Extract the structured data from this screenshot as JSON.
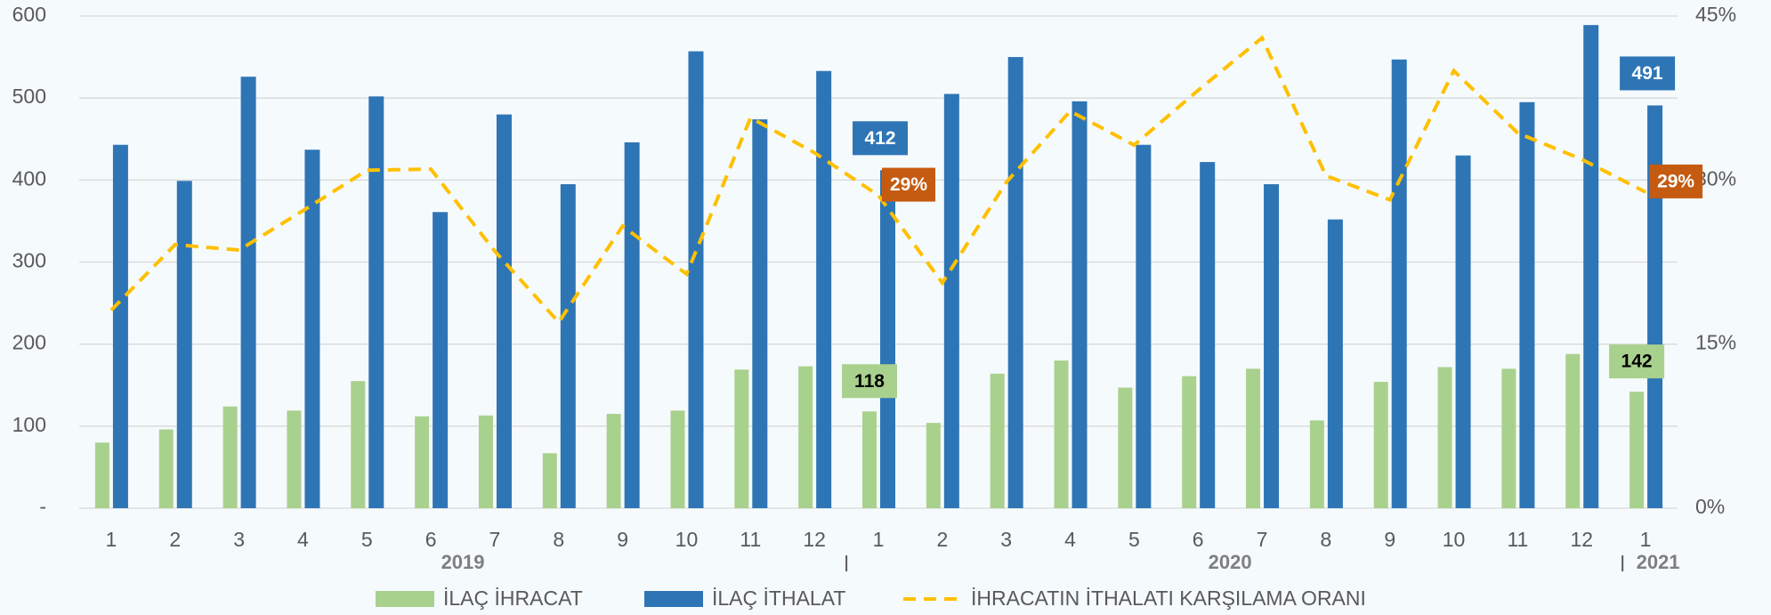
{
  "chart_data": {
    "type": "bar_line",
    "categories": [
      "1",
      "2",
      "3",
      "4",
      "5",
      "6",
      "7",
      "8",
      "9",
      "10",
      "11",
      "12",
      "1",
      "2",
      "3",
      "4",
      "5",
      "6",
      "7",
      "8",
      "9",
      "10",
      "11",
      "12",
      "1"
    ],
    "groups": [
      "2019",
      "2020",
      "2021"
    ],
    "group_sizes": [
      12,
      12,
      1
    ],
    "series": [
      {
        "name": "İLAÇ İHRACAT",
        "type": "bar",
        "color": "#a9d18e",
        "values": [
          80,
          96,
          124,
          119,
          155,
          112,
          113,
          67,
          115,
          119,
          169,
          173,
          118,
          104,
          164,
          180,
          147,
          161,
          170,
          107,
          154,
          172,
          170,
          188,
          142
        ],
        "labeled": [
          12,
          24
        ]
      },
      {
        "name": "İLAÇ İTHALAT",
        "type": "bar",
        "color": "#2e75b6",
        "values": [
          443,
          399,
          526,
          437,
          502,
          361,
          480,
          395,
          446,
          557,
          474,
          533,
          412,
          505,
          550,
          496,
          443,
          422,
          395,
          352,
          547,
          430,
          495,
          589,
          491
        ],
        "labeled": [
          12,
          24
        ]
      },
      {
        "name": "İHRACATIN İTHALATI KARŞILAMA ORANI",
        "type": "line",
        "axis": "y2",
        "color": "#ffc000",
        "dashed": true,
        "values": [
          18.1,
          24.1,
          23.6,
          27.2,
          30.9,
          31.0,
          23.5,
          17.0,
          25.8,
          21.4,
          35.7,
          32.5,
          28.6,
          20.6,
          29.8,
          36.3,
          33.2,
          38.2,
          43.0,
          30.4,
          28.2,
          40.0,
          34.3,
          31.9,
          28.9
        ],
        "value_labels": [
          null,
          null,
          null,
          null,
          null,
          null,
          null,
          null,
          null,
          null,
          null,
          null,
          "29%",
          null,
          null,
          null,
          null,
          null,
          null,
          null,
          null,
          null,
          null,
          null,
          "29%"
        ]
      }
    ],
    "ylim": [
      0,
      600
    ],
    "yticks": [
      {
        "value": 0,
        "label": "-"
      },
      100,
      200,
      300,
      400,
      500,
      600
    ],
    "y2lim": [
      0,
      45
    ],
    "y2ticks": [
      {
        "value": 0,
        "label": "0%"
      },
      {
        "value": 15,
        "label": "15%"
      },
      {
        "value": 30,
        "label": "30%"
      },
      {
        "value": 45,
        "label": "45%"
      }
    ],
    "grid": true,
    "legend": "bottom"
  }
}
